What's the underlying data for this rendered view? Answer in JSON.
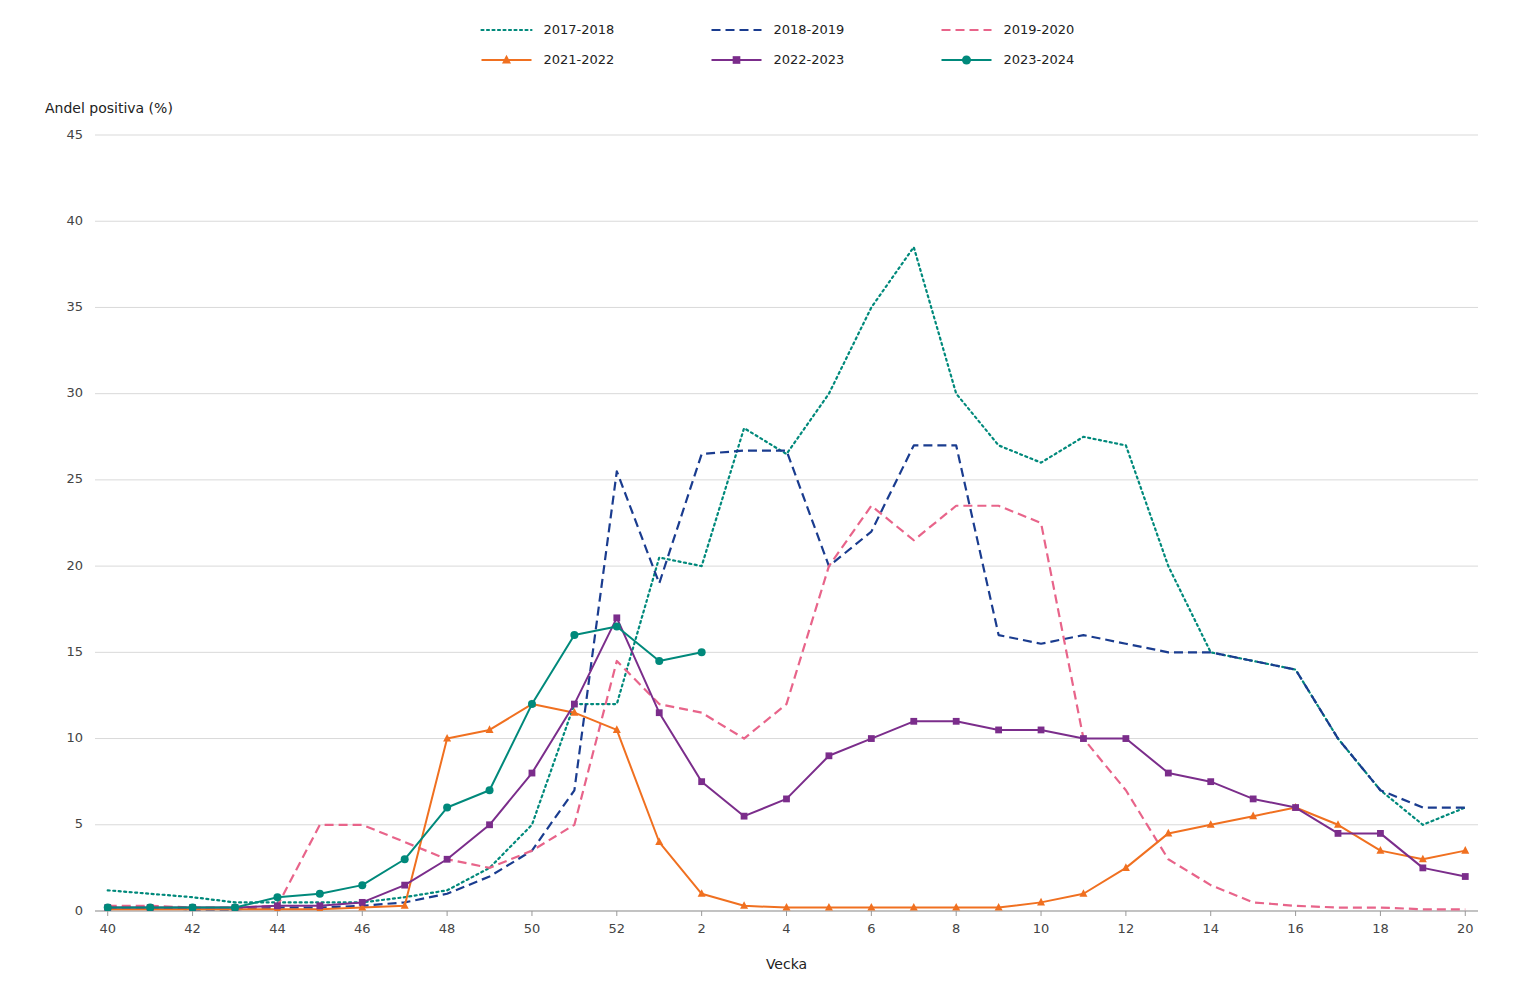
{
  "chart_data": {
    "type": "line",
    "xlabel": "Vecka",
    "ylabel": "Andel positiva (%)",
    "categories": [
      "40",
      null,
      "42",
      null,
      "44",
      null,
      "46",
      null,
      "48",
      null,
      "50",
      null,
      "52",
      null,
      "2",
      null,
      "4",
      null,
      "6",
      null,
      "8",
      null,
      "10",
      null,
      "12",
      null,
      "14",
      null,
      "16",
      null,
      "18",
      null,
      "20"
    ],
    "ylim": [
      0,
      45
    ],
    "yticks": [
      0,
      5,
      10,
      15,
      20,
      25,
      30,
      35,
      40,
      45
    ],
    "grid": true,
    "legend": "top",
    "series": [
      {
        "name": "2017-2018",
        "color": "#00897b",
        "line_style": "dotted",
        "values": [
          1.2,
          1.0,
          0.8,
          0.5,
          0.5,
          0.5,
          0.5,
          0.8,
          1.2,
          2.5,
          5.0,
          12.0,
          12.0,
          20.5,
          20.0,
          28.0,
          26.5,
          30.0,
          35.0,
          38.5,
          30.0,
          27.0,
          26.0,
          27.5,
          27.0,
          20.0,
          15.0,
          14.5,
          14.0,
          10.0,
          7.0,
          5.0,
          6.0
        ]
      },
      {
        "name": "2018-2019",
        "color": "#1a3c8f",
        "line_style": "dashed",
        "values": [
          0.2,
          0.2,
          0.1,
          0.1,
          0.2,
          0.2,
          0.3,
          0.5,
          1.0,
          2.0,
          3.5,
          7.0,
          25.5,
          19.0,
          26.5,
          26.7,
          26.7,
          20.0,
          22.0,
          27.0,
          27.0,
          16.0,
          15.5,
          16.0,
          15.5,
          15.0,
          15.0,
          14.5,
          14.0,
          10.0,
          7.0,
          6.0,
          6.0
        ]
      },
      {
        "name": "2019-2020",
        "color": "#e8648a",
        "line_style": "dashed",
        "values": [
          0.3,
          0.3,
          0.2,
          0.2,
          0.3,
          5.0,
          5.0,
          4.0,
          3.0,
          2.5,
          3.5,
          5.0,
          14.5,
          12.0,
          11.5,
          10.0,
          12.0,
          20.0,
          23.5,
          21.5,
          23.5,
          23.5,
          22.5,
          10.0,
          7.0,
          3.0,
          1.5,
          0.5,
          0.3,
          0.2,
          0.2,
          0.1,
          0.1
        ]
      },
      {
        "name": "2021-2022",
        "color": "#f07020",
        "line_style": "solid",
        "marker": "triangle",
        "values": [
          0.1,
          0.1,
          0.1,
          0.1,
          0.1,
          0.1,
          0.2,
          0.3,
          10.0,
          10.5,
          12.0,
          11.5,
          10.5,
          4.0,
          1.0,
          0.3,
          0.2,
          0.2,
          0.2,
          0.2,
          0.2,
          0.2,
          0.5,
          1.0,
          2.5,
          4.5,
          5.0,
          5.5,
          6.0,
          5.0,
          3.5,
          3.0,
          3.5
        ]
      },
      {
        "name": "2022-2023",
        "color": "#7b2d8b",
        "line_style": "solid",
        "marker": "square",
        "values": [
          0.2,
          0.2,
          0.2,
          0.2,
          0.3,
          0.3,
          0.5,
          1.5,
          3.0,
          5.0,
          8.0,
          12.0,
          17.0,
          11.5,
          7.5,
          5.5,
          6.5,
          9.0,
          10.0,
          11.0,
          11.0,
          10.5,
          10.5,
          10.0,
          10.0,
          8.0,
          7.5,
          6.5,
          6.0,
          4.5,
          4.5,
          2.5,
          2.0
        ]
      },
      {
        "name": "2023-2024",
        "color": "#00897b",
        "line_style": "solid",
        "marker": "circle",
        "values": [
          0.2,
          0.2,
          0.2,
          0.2,
          0.8,
          1.0,
          1.5,
          3.0,
          6.0,
          7.0,
          12.0,
          16.0,
          16.5,
          14.5,
          15.0,
          null,
          null,
          null,
          null,
          null,
          null,
          null,
          null,
          null,
          null,
          null,
          null,
          null,
          null,
          null,
          null,
          null,
          null
        ]
      }
    ]
  }
}
